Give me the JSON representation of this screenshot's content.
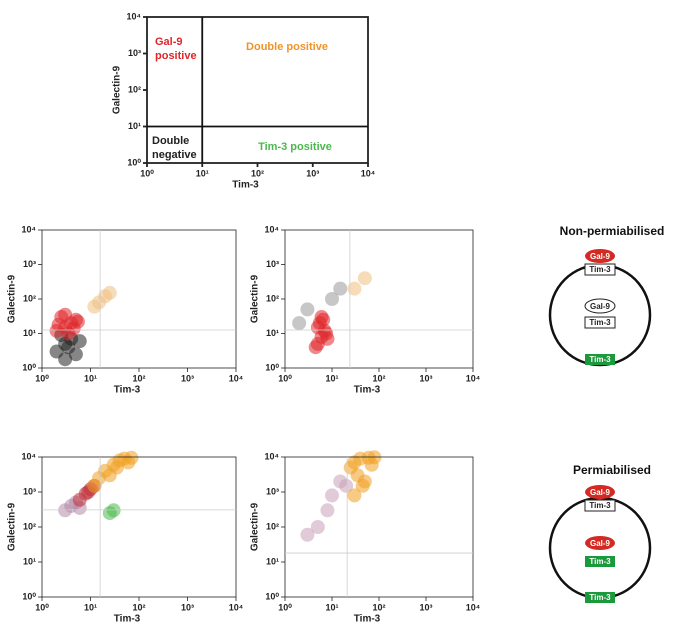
{
  "chart_data": [
    {
      "type": "scatter",
      "xlabel": "Tim-3",
      "ylabel": "Galectin-9",
      "log_x": true,
      "log_y": true,
      "xlim": [
        1,
        10000
      ],
      "ylim": [
        1,
        10000
      ],
      "xticks": [
        {
          "value": 1,
          "label": "10⁰"
        },
        {
          "value": 10,
          "label": "10¹"
        },
        {
          "value": 100,
          "label": "10²"
        },
        {
          "value": 1000,
          "label": "10³"
        },
        {
          "value": 10000,
          "label": "10⁴"
        }
      ],
      "yticks": [
        {
          "value": 1,
          "label": "10⁰"
        },
        {
          "value": 10,
          "label": "10¹"
        },
        {
          "value": 100,
          "label": "10²"
        },
        {
          "value": 1000,
          "label": "10³"
        },
        {
          "value": 10000,
          "label": "10⁴"
        }
      ],
      "gates": {
        "x": 10,
        "y": 10
      },
      "annotations": [
        {
          "lines": [
            "Gal-9",
            "positive"
          ],
          "color": "#e0262a"
        },
        {
          "lines": [
            "Double positive"
          ],
          "color": "#f0932a"
        },
        {
          "lines": [
            "Double",
            "negative"
          ],
          "color": "#222222"
        },
        {
          "lines": [
            "Tim-3 positive"
          ],
          "color": "#4cb84c"
        }
      ],
      "series": []
    },
    {
      "type": "scatter",
      "xlabel": "Tim-3",
      "ylabel": "Galectin-9",
      "log_x": true,
      "log_y": true,
      "xlim": [
        1,
        10000
      ],
      "ylim": [
        1,
        10000
      ],
      "xticks": [
        {
          "value": 1,
          "label": "10⁰"
        },
        {
          "value": 10,
          "label": "10¹"
        },
        {
          "value": 100,
          "label": "10²"
        },
        {
          "value": 1000,
          "label": "10³"
        },
        {
          "value": 10000,
          "label": "10⁴"
        }
      ],
      "yticks": [
        {
          "value": 1,
          "label": "10⁰"
        },
        {
          "value": 10,
          "label": "10¹"
        },
        {
          "value": 100,
          "label": "10²"
        },
        {
          "value": 1000,
          "label": "10³"
        },
        {
          "value": 10000,
          "label": "10⁴"
        }
      ],
      "gates": {
        "x": 15.8,
        "y": 12.6
      },
      "series": [
        {
          "color": "#222222",
          "x": [
            2,
            3,
            4,
            5,
            2.5,
            3.5,
            6,
            3
          ],
          "y": [
            3,
            5,
            7,
            2.5,
            9,
            4,
            6,
            1.8
          ]
        },
        {
          "color": "#e0262a",
          "x": [
            2,
            3,
            4,
            5,
            2.5,
            3.5,
            4.5,
            3,
            2.2,
            5.5
          ],
          "y": [
            12,
            15,
            20,
            25,
            30,
            10,
            14,
            35,
            18,
            22
          ]
        },
        {
          "color": "#f0c080",
          "x": [
            15,
            20,
            25,
            12
          ],
          "y": [
            80,
            120,
            150,
            60
          ]
        }
      ]
    },
    {
      "type": "scatter",
      "xlabel": "Tim-3",
      "ylabel": "Galectin-9",
      "log_x": true,
      "log_y": true,
      "xlim": [
        1,
        10000
      ],
      "ylim": [
        1,
        10000
      ],
      "xticks": [
        {
          "value": 1,
          "label": "10⁰"
        },
        {
          "value": 10,
          "label": "10¹"
        },
        {
          "value": 100,
          "label": "10²"
        },
        {
          "value": 1000,
          "label": "10³"
        },
        {
          "value": 10000,
          "label": "10⁴"
        }
      ],
      "yticks": [
        {
          "value": 1,
          "label": "10⁰"
        },
        {
          "value": 10,
          "label": "10¹"
        },
        {
          "value": 100,
          "label": "10²"
        },
        {
          "value": 1000,
          "label": "10³"
        },
        {
          "value": 10000,
          "label": "10⁴"
        }
      ],
      "gates": {
        "x": 24,
        "y": 12.6
      },
      "series": [
        {
          "color": "#999999",
          "x": [
            3,
            10,
            15,
            2
          ],
          "y": [
            50,
            100,
            200,
            20
          ]
        },
        {
          "color": "#e0262a",
          "x": [
            5,
            6,
            7,
            5.5,
            6.5,
            4.5,
            7.5,
            6,
            5,
            8
          ],
          "y": [
            5,
            8,
            12,
            20,
            25,
            4,
            10,
            30,
            15,
            7
          ]
        },
        {
          "color": "#f0c080",
          "x": [
            30,
            50
          ],
          "y": [
            200,
            400
          ]
        }
      ]
    },
    {
      "type": "scatter",
      "xlabel": "Tim-3",
      "ylabel": "Galectin-9",
      "log_x": true,
      "log_y": true,
      "xlim": [
        1,
        10000
      ],
      "ylim": [
        1,
        10000
      ],
      "xticks": [
        {
          "value": 1,
          "label": "10⁰"
        },
        {
          "value": 10,
          "label": "10¹"
        },
        {
          "value": 100,
          "label": "10²"
        },
        {
          "value": 1000,
          "label": "10³"
        },
        {
          "value": 10000,
          "label": "10⁴"
        }
      ],
      "yticks": [
        {
          "value": 1,
          "label": "10⁰"
        },
        {
          "value": 10,
          "label": "10¹"
        },
        {
          "value": 100,
          "label": "10²"
        },
        {
          "value": 1000,
          "label": "10³"
        },
        {
          "value": 10000,
          "label": "10⁴"
        }
      ],
      "gates": {
        "x": 15.8,
        "y": 309
      },
      "series": [
        {
          "color": "#b48aa8",
          "x": [
            3,
            4,
            5,
            6
          ],
          "y": [
            300,
            400,
            500,
            350
          ]
        },
        {
          "color": "#4cb84c",
          "x": [
            25,
            30
          ],
          "y": [
            250,
            300
          ]
        },
        {
          "color": "#c0303a",
          "x": [
            6,
            8,
            10,
            12,
            9
          ],
          "y": [
            600,
            900,
            1200,
            1500,
            1000
          ]
        },
        {
          "color": "#f0a020",
          "x": [
            12,
            15,
            20,
            30,
            40,
            50,
            70,
            25,
            35,
            60
          ],
          "y": [
            1500,
            2500,
            4000,
            6000,
            8000,
            9000,
            9500,
            3000,
            5000,
            7000
          ]
        }
      ]
    },
    {
      "type": "scatter",
      "xlabel": "Tim-3",
      "ylabel": "Galectin-9",
      "log_x": true,
      "log_y": true,
      "xlim": [
        1,
        10000
      ],
      "ylim": [
        1,
        10000
      ],
      "xticks": [
        {
          "value": 1,
          "label": "10⁰"
        },
        {
          "value": 10,
          "label": "10¹"
        },
        {
          "value": 100,
          "label": "10²"
        },
        {
          "value": 1000,
          "label": "10³"
        },
        {
          "value": 10000,
          "label": "10⁴"
        }
      ],
      "yticks": [
        {
          "value": 1,
          "label": "10⁰"
        },
        {
          "value": 10,
          "label": "10¹"
        },
        {
          "value": 100,
          "label": "10²"
        },
        {
          "value": 1000,
          "label": "10³"
        },
        {
          "value": 10000,
          "label": "10⁴"
        }
      ],
      "gates": {
        "x": 21,
        "y": 18
      },
      "series": [
        {
          "color": "#c8a0b8",
          "x": [
            5,
            8,
            10,
            15,
            3,
            20
          ],
          "y": [
            100,
            300,
            800,
            2000,
            60,
            1500
          ]
        },
        {
          "color": "#f0a020",
          "x": [
            25,
            30,
            40,
            60,
            80,
            35,
            50,
            45,
            30,
            70
          ],
          "y": [
            5000,
            7000,
            9000,
            9500,
            9800,
            3000,
            2000,
            1500,
            800,
            6000
          ]
        }
      ]
    }
  ],
  "diagrams": [
    {
      "title": "Non-permiabilised",
      "surface": [
        "Gal-9",
        "Tim-3"
      ],
      "inner": [
        "Gal-9",
        "Tim-3"
      ],
      "bottom": "Tim-3"
    },
    {
      "title": "Permiabilised",
      "surface": [
        "Gal-9",
        "Tim-3"
      ],
      "inner": [
        "Gal-9",
        "Tim-3"
      ],
      "bottom": "Tim-3"
    }
  ]
}
